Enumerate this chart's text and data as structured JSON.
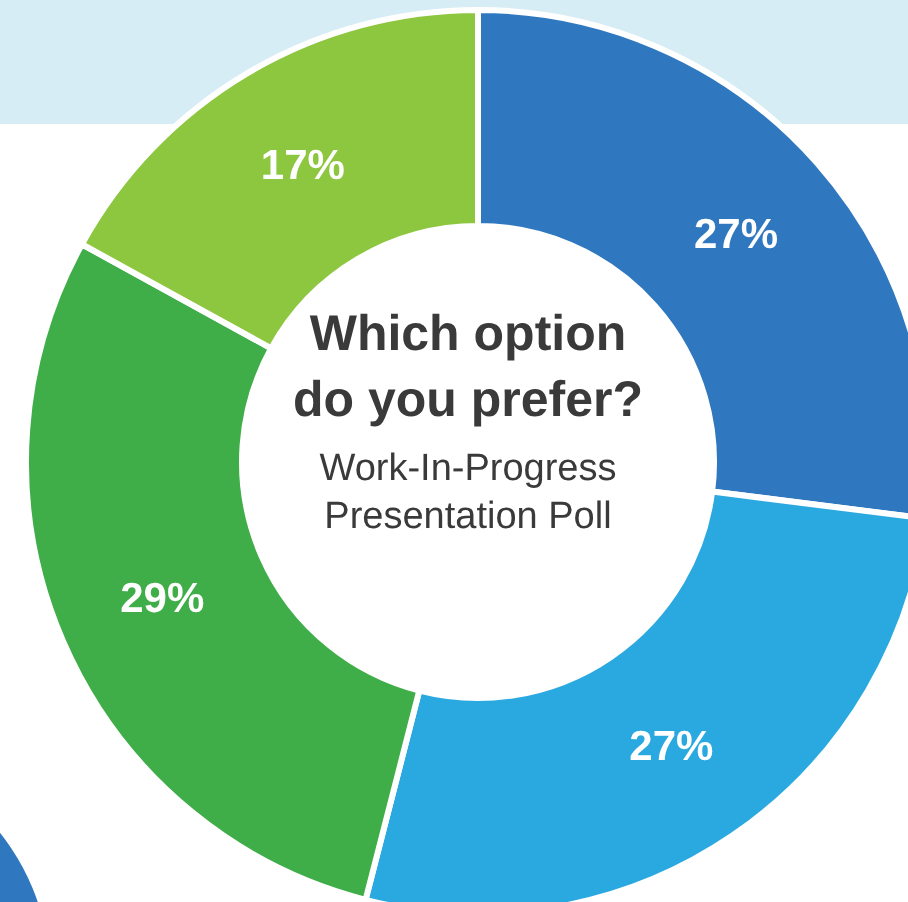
{
  "chart_data": {
    "type": "donut",
    "title": "Which option do you prefer?",
    "subtitle": "Work-In-Progress Presentation Poll",
    "categories": [
      null,
      null,
      null,
      null
    ],
    "values": [
      27,
      27,
      29,
      17
    ],
    "colors": [
      "#2f78bf",
      "#2aa8e0",
      "#3fae49",
      "#8dc63f"
    ],
    "value_labels": [
      "27%",
      "27%",
      "29%",
      "17%"
    ]
  }
}
